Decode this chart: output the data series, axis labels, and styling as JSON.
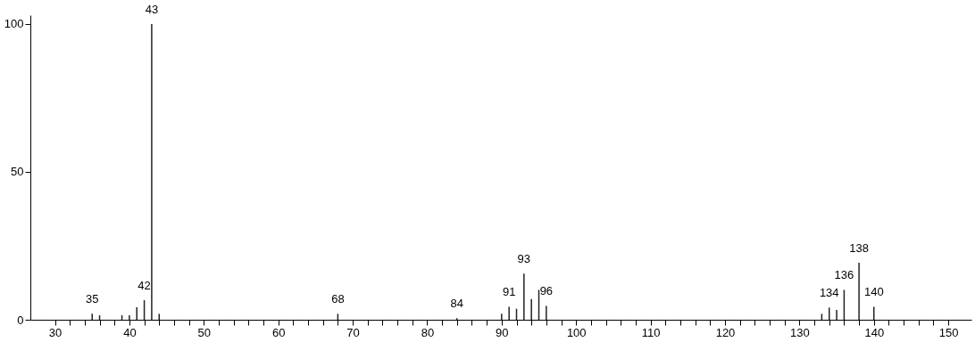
{
  "chart_data": {
    "type": "bar",
    "x": [
      35,
      36,
      39,
      40,
      41,
      42,
      43,
      44,
      68,
      84,
      90,
      91,
      92,
      93,
      94,
      95,
      96,
      133,
      134,
      135,
      136,
      138,
      140
    ],
    "series": [
      {
        "color": "#222222",
        "values": [
          2,
          1.5,
          1.5,
          1.5,
          4.2,
          6.6,
          100,
          2,
          2,
          0.5,
          2,
          4.4,
          3.7,
          15.6,
          7,
          10.1,
          4.7,
          2,
          4.1,
          3.3,
          10.1,
          19.3,
          4.4
        ]
      }
    ],
    "xlim": [
      27.3,
      152.5
    ],
    "ylim": [
      0,
      103
    ],
    "xticks": [
      30,
      {
        "value": 32,
        "label": null
      },
      {
        "value": 34,
        "label": null
      },
      {
        "value": 36,
        "label": null
      },
      {
        "value": 38,
        "label": null
      },
      40,
      {
        "value": 42,
        "label": null
      },
      {
        "value": 44,
        "label": null
      },
      {
        "value": 46,
        "label": null
      },
      {
        "value": 48,
        "label": null
      },
      50,
      {
        "value": 52,
        "label": null
      },
      {
        "value": 54,
        "label": null
      },
      {
        "value": 56,
        "label": null
      },
      {
        "value": 58,
        "label": null
      },
      60,
      {
        "value": 62,
        "label": null
      },
      {
        "value": 64,
        "label": null
      },
      {
        "value": 66,
        "label": null
      },
      {
        "value": 68,
        "label": null
      },
      70,
      {
        "value": 72,
        "label": null
      },
      {
        "value": 74,
        "label": null
      },
      {
        "value": 76,
        "label": null
      },
      {
        "value": 78,
        "label": null
      },
      80,
      {
        "value": 82,
        "label": null
      },
      {
        "value": 84,
        "label": null
      },
      {
        "value": 86,
        "label": null
      },
      {
        "value": 88,
        "label": null
      },
      90,
      {
        "value": 92,
        "label": null
      },
      {
        "value": 94,
        "label": null
      },
      {
        "value": 96,
        "label": null
      },
      {
        "value": 98,
        "label": null
      },
      100,
      {
        "value": 102,
        "label": null
      },
      {
        "value": 104,
        "label": null
      },
      {
        "value": 106,
        "label": null
      },
      {
        "value": 108,
        "label": null
      },
      110,
      {
        "value": 112,
        "label": null
      },
      {
        "value": 114,
        "label": null
      },
      {
        "value": 116,
        "label": null
      },
      {
        "value": 118,
        "label": null
      },
      120,
      {
        "value": 122,
        "label": null
      },
      {
        "value": 124,
        "label": null
      },
      {
        "value": 126,
        "label": null
      },
      {
        "value": 128,
        "label": null
      },
      130,
      {
        "value": 132,
        "label": null
      },
      {
        "value": 134,
        "label": null
      },
      {
        "value": 136,
        "label": null
      },
      {
        "value": 138,
        "label": null
      },
      140,
      {
        "value": 142,
        "label": null
      },
      {
        "value": 144,
        "label": null
      },
      {
        "value": 146,
        "label": null
      },
      {
        "value": 148,
        "label": null
      },
      150
    ],
    "yticks": [
      0,
      50,
      100
    ],
    "grid": false,
    "annotations": [
      {
        "text": "35",
        "x": 35,
        "y": 2
      },
      {
        "text": "42",
        "x": 42,
        "y": 6.6
      },
      {
        "text": "43",
        "x": 43,
        "y": 100
      },
      {
        "text": "68",
        "x": 68,
        "y": 2
      },
      {
        "text": "84",
        "x": 84,
        "y": 0.5
      },
      {
        "text": "91",
        "x": 91,
        "y": 4.4
      },
      {
        "text": "93",
        "x": 93,
        "y": 15.6
      },
      {
        "text": "96",
        "x": 96,
        "y": 4.7
      },
      {
        "text": "134",
        "x": 134,
        "y": 4.1
      },
      {
        "text": "136",
        "x": 136,
        "y": 10.1
      },
      {
        "text": "138",
        "x": 138,
        "y": 19.3
      },
      {
        "text": "140",
        "x": 140,
        "y": 4.4
      }
    ]
  }
}
